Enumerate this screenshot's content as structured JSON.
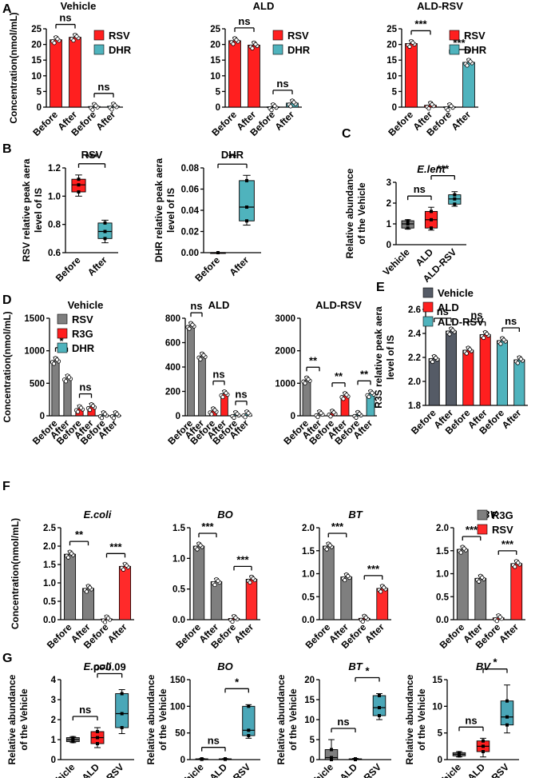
{
  "colors": {
    "red": "#ff1f1f",
    "teal": "#4fb3bd",
    "gray": "#7f7f7f",
    "dark": "#555b66",
    "pred": "#ff2a2a",
    "blue": "#4aa7b8"
  },
  "panel_letters": [
    "A",
    "B",
    "C",
    "D",
    "E",
    "F",
    "G"
  ],
  "chart_data": [
    {
      "panel": "A",
      "type": "bar",
      "title": "Vehicle",
      "ylabel": "Concentration(nmol/mL)",
      "ylim": [
        0,
        25
      ],
      "yticks": [
        "0",
        "5",
        "10",
        "15",
        "20",
        "25"
      ],
      "categories": [
        "Before",
        "After",
        "Before",
        "After"
      ],
      "groups": [
        "RSV",
        "RSV",
        "DHR",
        "DHR"
      ],
      "series": [
        {
          "name": "RSV",
          "color": "red",
          "values": [
            21.5,
            22.3,
            null,
            null
          ]
        },
        {
          "name": "DHR",
          "color": "teal",
          "values": [
            null,
            null,
            0.2,
            0.3
          ]
        }
      ],
      "legend": [
        "RSV",
        "DHR"
      ],
      "legend_position": "right",
      "significance": [
        "ns",
        "ns"
      ]
    },
    {
      "panel": "A",
      "type": "bar",
      "title": "ALD",
      "ylabel": "",
      "ylim": [
        0,
        25
      ],
      "yticks": [
        "0",
        "5",
        "10",
        "15",
        "20",
        "25"
      ],
      "categories": [
        "Before",
        "After",
        "Before",
        "After"
      ],
      "series": [
        {
          "name": "RSV",
          "color": "red",
          "values": [
            21.2,
            19.8,
            null,
            null
          ]
        },
        {
          "name": "DHR",
          "color": "teal",
          "values": [
            null,
            null,
            0.1,
            1.3
          ]
        }
      ],
      "legend": [
        "RSV",
        "DHR"
      ],
      "legend_position": "right",
      "significance": [
        "ns",
        "ns"
      ]
    },
    {
      "panel": "A",
      "type": "bar",
      "title": "ALD-RSV",
      "ylabel": "",
      "ylim": [
        0,
        25
      ],
      "yticks": [
        "0",
        "5",
        "10",
        "15",
        "20",
        "25"
      ],
      "categories": [
        "Before",
        "After",
        "Before",
        "After"
      ],
      "series": [
        {
          "name": "RSV",
          "color": "red",
          "values": [
            20.3,
            0.6,
            null,
            null
          ]
        },
        {
          "name": "DHR",
          "color": "teal",
          "values": [
            null,
            null,
            0.1,
            14.3
          ]
        }
      ],
      "legend": [
        "RSV",
        "DHR"
      ],
      "legend_position": "right",
      "significance": [
        "***",
        "***"
      ]
    },
    {
      "panel": "B",
      "type": "box",
      "title": "RSV",
      "ylabel": "RSV relative peak aera level of IS",
      "ylim": [
        0.6,
        1.2
      ],
      "yticks": [
        "0.6",
        "0.8",
        "1.0",
        "1.2"
      ],
      "categories": [
        "Before",
        "After"
      ],
      "boxes": [
        {
          "min": 1.0,
          "q1": 1.03,
          "median": 1.08,
          "q3": 1.12,
          "max": 1.15,
          "color": "red"
        },
        {
          "min": 0.67,
          "q1": 0.7,
          "median": 0.75,
          "q3": 0.81,
          "max": 0.83,
          "color": "teal"
        }
      ],
      "significance": [
        "***"
      ]
    },
    {
      "panel": "B",
      "type": "box",
      "title": "DHR",
      "ylabel": "DHR relative peak aera level of IS",
      "ylim": [
        0,
        0.08
      ],
      "yticks": [
        "0.00",
        "0.02",
        "0.04",
        "0.06",
        "0.08"
      ],
      "categories": [
        "Before",
        "After"
      ],
      "boxes": [
        {
          "min": 0,
          "q1": 0,
          "median": 0,
          "q3": 0,
          "max": 0,
          "color": "red"
        },
        {
          "min": 0.026,
          "q1": 0.03,
          "median": 0.043,
          "q3": 0.068,
          "max": 0.073,
          "color": "teal"
        }
      ],
      "significance": [
        "**"
      ]
    },
    {
      "panel": "C",
      "type": "box",
      "title": "E.lent",
      "ylabel": "Relative abundance of the Vehicle",
      "ylim": [
        0,
        3
      ],
      "yticks": [
        "0",
        "1",
        "2",
        "3"
      ],
      "categories": [
        "Vehicle",
        "ALD",
        "ALD-RSV"
      ],
      "boxes": [
        {
          "min": 0.75,
          "q1": 0.8,
          "median": 1.0,
          "q3": 1.15,
          "max": 1.2,
          "color": "gray"
        },
        {
          "min": 0.7,
          "q1": 0.8,
          "median": 1.2,
          "q3": 1.6,
          "max": 1.8,
          "color": "red"
        },
        {
          "min": 1.85,
          "q1": 1.95,
          "median": 2.2,
          "q3": 2.4,
          "max": 2.55,
          "color": "teal"
        }
      ],
      "significance": [
        "ns",
        "***"
      ]
    },
    {
      "panel": "D",
      "type": "bar",
      "title": "Vehicle",
      "ylabel": "Concentration(nmol/mL)",
      "ylim": [
        0,
        1500
      ],
      "yticks": [
        "0",
        "500",
        "1000",
        "1500"
      ],
      "categories": [
        "Before",
        "After",
        "Before",
        "After",
        "Before",
        "After"
      ],
      "series": [
        {
          "name": "RSV",
          "color": "gray",
          "values": [
            850,
            580,
            null,
            null,
            null,
            null
          ]
        },
        {
          "name": "R3G",
          "color": "red",
          "values": [
            null,
            null,
            110,
            140,
            null,
            null
          ]
        },
        {
          "name": "DHR",
          "color": "teal",
          "values": [
            null,
            null,
            null,
            null,
            15,
            15
          ]
        }
      ],
      "legend": [
        "RSV",
        "R3G",
        "DHR"
      ],
      "legend_position": "right",
      "significance": [
        "*",
        "ns"
      ]
    },
    {
      "panel": "D",
      "type": "bar",
      "title": "ALD",
      "ylabel": "",
      "ylim": [
        0,
        800
      ],
      "yticks": [
        "0",
        "200",
        "400",
        "600",
        "800"
      ],
      "categories": [
        "Before",
        "After",
        "Before",
        "After",
        "Before",
        "After"
      ],
      "series": [
        {
          "name": "RSV",
          "color": "gray",
          "values": [
            740,
            490,
            null,
            null,
            null,
            null
          ]
        },
        {
          "name": "R3G",
          "color": "red",
          "values": [
            null,
            null,
            40,
            180,
            null,
            null
          ]
        },
        {
          "name": "DHR",
          "color": "teal",
          "values": [
            null,
            null,
            null,
            null,
            10,
            15
          ]
        }
      ],
      "significance": [
        "ns",
        "ns",
        "ns"
      ]
    },
    {
      "panel": "D",
      "type": "bar",
      "title": "ALD-RSV",
      "ylabel": "",
      "ylim": [
        0,
        3000
      ],
      "yticks": [
        "0",
        "1000",
        "2000",
        "3000"
      ],
      "categories": [
        "Before",
        "After",
        "Before",
        "After",
        "Before",
        "After"
      ],
      "series": [
        {
          "name": "RSV",
          "color": "gray",
          "values": [
            1100,
            60,
            null,
            null,
            null,
            null
          ]
        },
        {
          "name": "R3G",
          "color": "red",
          "values": [
            null,
            null,
            80,
            620,
            null,
            null
          ]
        },
        {
          "name": "DHR",
          "color": "teal",
          "values": [
            null,
            null,
            null,
            null,
            40,
            680
          ]
        }
      ],
      "significance": [
        "**",
        "**",
        "**"
      ]
    },
    {
      "panel": "E",
      "type": "bar",
      "title": "",
      "ylabel": "R3S relative peak aera level of IS",
      "ylim": [
        1.8,
        2.6
      ],
      "yticks": [
        "1.8",
        "2.0",
        "2.2",
        "2.4",
        "2.6"
      ],
      "categories": [
        "Before",
        "After",
        "Before",
        "After",
        "Before",
        "After"
      ],
      "series": [
        {
          "name": "Vehicle",
          "color": "dark",
          "values": [
            2.19,
            2.42,
            null,
            null,
            null,
            null
          ]
        },
        {
          "name": "ALD",
          "color": "red",
          "values": [
            null,
            null,
            2.26,
            2.39,
            null,
            null
          ]
        },
        {
          "name": "ALD-RSV",
          "color": "teal",
          "values": [
            null,
            null,
            null,
            null,
            2.34,
            2.18
          ]
        }
      ],
      "legend": [
        "Vehicle",
        "ALD",
        "ALD-RSV"
      ],
      "legend_position": "top",
      "significance": [
        "ns",
        "ns",
        "ns"
      ]
    },
    {
      "panel": "F",
      "type": "bar",
      "title": "E.coli",
      "ylabel": "Concentration(nmol/mL)",
      "ylim": [
        0,
        2.5
      ],
      "yticks": [
        "0.0",
        "0.5",
        "1.0",
        "1.5",
        "2.0",
        "2.5"
      ],
      "categories": [
        "Before",
        "After",
        "Before",
        "After"
      ],
      "series": [
        {
          "name": "R3G",
          "color": "gray",
          "values": [
            1.78,
            0.85,
            null,
            null
          ]
        },
        {
          "name": "RSV",
          "color": "pred",
          "values": [
            null,
            null,
            0.02,
            1.45
          ]
        }
      ],
      "significance": [
        "**",
        "***"
      ]
    },
    {
      "panel": "F",
      "type": "bar",
      "title": "BO",
      "ylabel": "",
      "ylim": [
        0,
        1.5
      ],
      "yticks": [
        "0.0",
        "0.5",
        "1.0",
        "1.5"
      ],
      "categories": [
        "Before",
        "After",
        "Before",
        "After"
      ],
      "series": [
        {
          "name": "R3G",
          "color": "gray",
          "values": [
            1.2,
            0.62,
            null,
            null
          ]
        },
        {
          "name": "RSV",
          "color": "pred",
          "values": [
            null,
            null,
            0.02,
            0.66
          ]
        }
      ],
      "significance": [
        "***",
        "***"
      ]
    },
    {
      "panel": "F",
      "type": "bar",
      "title": "BT",
      "ylabel": "",
      "ylim": [
        0,
        2.0
      ],
      "yticks": [
        "0.0",
        "0.5",
        "1.0",
        "1.5",
        "2.0"
      ],
      "categories": [
        "Before",
        "After",
        "Before",
        "After"
      ],
      "series": [
        {
          "name": "R3G",
          "color": "gray",
          "values": [
            1.6,
            0.93,
            null,
            null
          ]
        },
        {
          "name": "RSV",
          "color": "pred",
          "values": [
            null,
            null,
            0.03,
            0.68
          ]
        }
      ],
      "significance": [
        "***",
        "***"
      ]
    },
    {
      "panel": "F",
      "type": "bar",
      "title": "BV",
      "ylabel": "",
      "ylim": [
        0,
        2.0
      ],
      "yticks": [
        "0.0",
        "0.5",
        "1.0",
        "1.5",
        "2.0"
      ],
      "categories": [
        "Before",
        "After",
        "Before",
        "After"
      ],
      "series": [
        {
          "name": "R3G",
          "color": "gray",
          "values": [
            1.53,
            0.9,
            null,
            null
          ]
        },
        {
          "name": "RSV",
          "color": "pred",
          "values": [
            null,
            null,
            0.04,
            1.22
          ]
        }
      ],
      "legend": [
        "R3G",
        "RSV"
      ],
      "legend_position": "top-right",
      "significance": [
        "***",
        "***"
      ]
    },
    {
      "panel": "G",
      "type": "box",
      "title": "E.coli",
      "ylabel": "Relative abundance of the Vehicle",
      "ylim": [
        0,
        4
      ],
      "yticks": [
        "0",
        "1",
        "2",
        "3",
        "4"
      ],
      "categories": [
        "Vehicle",
        "ALD",
        "ALD-RSV"
      ],
      "boxes": [
        {
          "min": 0.85,
          "q1": 0.9,
          "median": 1.0,
          "q3": 1.1,
          "max": 1.15,
          "color": "gray"
        },
        {
          "min": 0.6,
          "q1": 0.8,
          "median": 1.1,
          "q3": 1.4,
          "max": 1.6,
          "color": "red"
        },
        {
          "min": 1.3,
          "q1": 1.6,
          "median": 2.3,
          "q3": 3.3,
          "max": 3.5,
          "color": "blue"
        }
      ],
      "significance": [
        "ns",
        "p=0.09"
      ]
    },
    {
      "panel": "G",
      "type": "box",
      "title": "BO",
      "ylabel": "Relative abundance of the Vehicle",
      "ylim": [
        0,
        150
      ],
      "yticks": [
        "0",
        "50",
        "100",
        "150"
      ],
      "categories": [
        "Vehicle",
        "ALD",
        "ALD-RSV"
      ],
      "boxes": [
        {
          "min": 0,
          "q1": 0.5,
          "median": 1,
          "q3": 1.5,
          "max": 2,
          "color": "gray"
        },
        {
          "min": 0,
          "q1": 0.5,
          "median": 1,
          "q3": 1.5,
          "max": 2,
          "color": "red"
        },
        {
          "min": 40,
          "q1": 45,
          "median": 55,
          "q3": 100,
          "max": 103,
          "color": "blue"
        }
      ],
      "significance": [
        "ns",
        "*"
      ]
    },
    {
      "panel": "G",
      "type": "box",
      "title": "BT",
      "ylabel": "Relative abundance of the Vehicle",
      "ylim": [
        0,
        20
      ],
      "yticks": [
        "0",
        "5",
        "10",
        "15",
        "20"
      ],
      "categories": [
        "Vehicle",
        "ALD",
        "ALD-RSV"
      ],
      "boxes": [
        {
          "min": 0,
          "q1": 0,
          "median": 0.5,
          "q3": 2.5,
          "max": 5,
          "color": "gray"
        },
        {
          "min": 0,
          "q1": 0,
          "median": 0.1,
          "q3": 0.2,
          "max": 0.3,
          "color": "red"
        },
        {
          "min": 10,
          "q1": 11,
          "median": 13,
          "q3": 16,
          "max": 16.5,
          "color": "blue"
        }
      ],
      "significance": [
        "ns",
        "*"
      ]
    },
    {
      "panel": "G",
      "type": "box",
      "title": "BV",
      "ylabel": "Relative abundance of the Vehicle",
      "ylim": [
        0,
        15
      ],
      "yticks": [
        "0",
        "5",
        "10",
        "15"
      ],
      "categories": [
        "Vehicle",
        "ALD",
        "ALD-RSV"
      ],
      "boxes": [
        {
          "min": 0.5,
          "q1": 0.7,
          "median": 1.0,
          "q3": 1.3,
          "max": 1.5,
          "color": "gray"
        },
        {
          "min": 0.5,
          "q1": 1.5,
          "median": 2.5,
          "q3": 3.5,
          "max": 4,
          "color": "red"
        },
        {
          "min": 5,
          "q1": 6.5,
          "median": 8,
          "q3": 11,
          "max": 14,
          "color": "blue"
        }
      ],
      "significance": [
        "ns",
        "*"
      ]
    }
  ]
}
